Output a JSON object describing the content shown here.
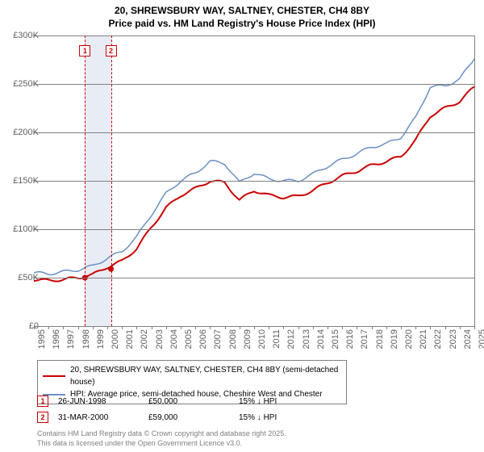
{
  "title_line1": "20, SHREWSBURY WAY, SALTNEY, CHESTER, CH4 8BY",
  "title_line2": "Price paid vs. HM Land Registry's House Price Index (HPI)",
  "chart": {
    "type": "line",
    "background_color": "#ffffff",
    "grid_color": "#808080",
    "x_years": [
      1995,
      1996,
      1997,
      1998,
      1999,
      2000,
      2001,
      2002,
      2003,
      2004,
      2005,
      2006,
      2007,
      2008,
      2009,
      2010,
      2011,
      2012,
      2013,
      2014,
      2015,
      2016,
      2017,
      2018,
      2019,
      2020,
      2021,
      2022,
      2023,
      2024,
      2025
    ],
    "ylim": [
      0,
      300000
    ],
    "ytick_step": 50000,
    "ytick_labels": [
      "£0",
      "£50K",
      "£100K",
      "£150K",
      "£200K",
      "£250K",
      "£300K"
    ],
    "series": [
      {
        "label": "20, SHREWSBURY WAY, SALTNEY, CHESTER, CH4 8BY (semi-detached house)",
        "color": "#cc0000",
        "line_width": 2,
        "values_by_year": {
          "1995": 48000,
          "1996": 47000,
          "1997": 48000,
          "1998": 50000,
          "1999": 53000,
          "2000": 61000,
          "2001": 67000,
          "2002": 80000,
          "2003": 102000,
          "2004": 122000,
          "2005": 135000,
          "2006": 142000,
          "2007": 150000,
          "2008": 148000,
          "2009": 130000,
          "2010": 140000,
          "2011": 135000,
          "2012": 133000,
          "2013": 134000,
          "2014": 140000,
          "2015": 148000,
          "2016": 155000,
          "2017": 160000,
          "2018": 166000,
          "2019": 170000,
          "2020": 175000,
          "2021": 192000,
          "2022": 217000,
          "2023": 225000,
          "2024": 232000,
          "2025": 247000
        }
      },
      {
        "label": "HPI: Average price, semi-detached house, Cheshire West and Chester",
        "color": "#6a8fc5",
        "line_width": 1.5,
        "values_by_year": {
          "1995": 55000,
          "1996": 54000,
          "1997": 56000,
          "1998": 58000,
          "1999": 62000,
          "2000": 70000,
          "2001": 77000,
          "2002": 92000,
          "2003": 115000,
          "2004": 137000,
          "2005": 150000,
          "2006": 158000,
          "2007": 170000,
          "2008": 168000,
          "2009": 148000,
          "2010": 158000,
          "2011": 152000,
          "2012": 150000,
          "2013": 150000,
          "2014": 157000,
          "2015": 165000,
          "2016": 172000,
          "2017": 178000,
          "2018": 185000,
          "2019": 188000,
          "2020": 195000,
          "2021": 215000,
          "2022": 247000,
          "2023": 248000,
          "2024": 255000,
          "2025": 276000
        }
      }
    ],
    "transactions": [
      {
        "n": "1",
        "year": 1998.48,
        "value": 50000
      },
      {
        "n": "2",
        "year": 2000.25,
        "value": 59000
      }
    ],
    "shade": {
      "from_year": 1998.48,
      "to_year": 2000.25,
      "color": "#e8ecf5"
    }
  },
  "legend": {
    "items": [
      {
        "color": "#cc0000",
        "label": "20, SHREWSBURY WAY, SALTNEY, CHESTER, CH4 8BY (semi-detached house)"
      },
      {
        "color": "#6a8fc5",
        "label": "HPI: Average price, semi-detached house, Cheshire West and Chester"
      }
    ]
  },
  "transactions_table": [
    {
      "n": "1",
      "color": "#cc0000",
      "date": "26-JUN-1998",
      "price": "£50,000",
      "vs_hpi": "15% ↓ HPI"
    },
    {
      "n": "2",
      "color": "#cc0000",
      "date": "31-MAR-2000",
      "price": "£59,000",
      "vs_hpi": "15% ↓ HPI"
    }
  ],
  "footer_line1": "Contains HM Land Registry data © Crown copyright and database right 2025.",
  "footer_line2": "This data is licensed under the Open Government Licence v3.0."
}
